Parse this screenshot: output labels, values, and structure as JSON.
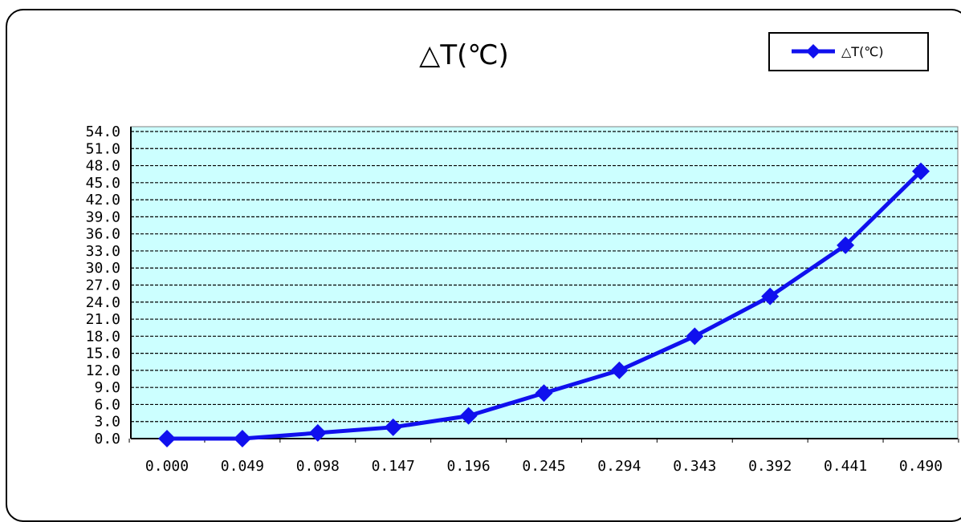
{
  "chart_data": {
    "type": "line",
    "title": "△T(℃)",
    "xlabel": "",
    "ylabel": "",
    "categories": [
      "0.000",
      "0.049",
      "0.098",
      "0.147",
      "0.196",
      "0.245",
      "0.294",
      "0.343",
      "0.392",
      "0.441",
      "0.490"
    ],
    "series": [
      {
        "name": "△T(℃)",
        "values": [
          0.0,
          0.0,
          1.0,
          2.0,
          4.0,
          8.0,
          12.0,
          18.0,
          25.0,
          34.0,
          47.0
        ],
        "color": "#1010ee",
        "marker": "diamond"
      }
    ],
    "ylim": [
      0,
      54
    ],
    "yticks": [
      "0.0",
      "3.0",
      "6.0",
      "9.0",
      "12.0",
      "15.0",
      "18.0",
      "21.0",
      "24.0",
      "27.0",
      "30.0",
      "33.0",
      "36.0",
      "39.0",
      "42.0",
      "45.0",
      "48.0",
      "51.0",
      "54.0"
    ],
    "grid": true,
    "grid_style": "dashed",
    "plot_background": "#ccffff",
    "legend_position": "top-right"
  }
}
